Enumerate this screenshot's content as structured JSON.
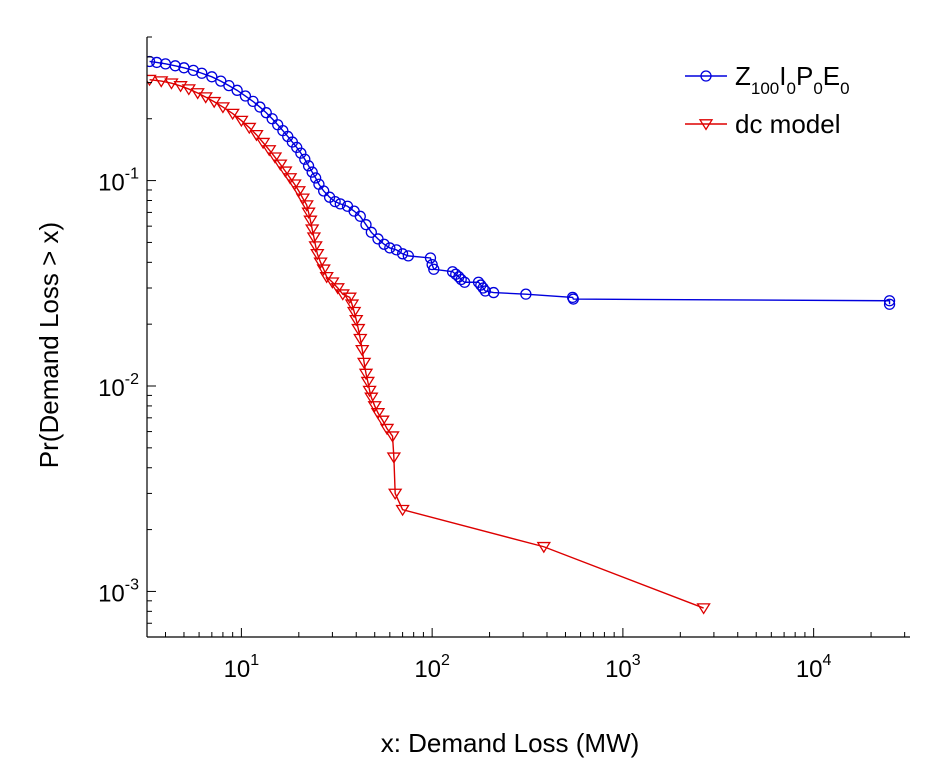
{
  "chart_data": {
    "type": "line",
    "title": "",
    "xlabel": "x: Demand Loss (MW)",
    "ylabel": "Pr(Demand Loss > x)",
    "x_scale": "log",
    "y_scale": "log",
    "xlim": [
      3.2,
      32000
    ],
    "ylim": [
      0.0006,
      0.5
    ],
    "grid": false,
    "legend_position": "top-right",
    "x_ticks": [
      {
        "value": 10,
        "base": "10",
        "exp": "1"
      },
      {
        "value": 100,
        "base": "10",
        "exp": "2"
      },
      {
        "value": 1000,
        "base": "10",
        "exp": "3"
      },
      {
        "value": 10000,
        "base": "10",
        "exp": "4"
      }
    ],
    "y_ticks": [
      {
        "value": 0.1,
        "base": "10",
        "exp": "-1"
      },
      {
        "value": 0.01,
        "base": "10",
        "exp": "-2"
      },
      {
        "value": 0.001,
        "base": "10",
        "exp": "-3"
      }
    ],
    "series": [
      {
        "name": "Z100I0P0E0",
        "legend_parts": [
          {
            "t": "Z",
            "sub": false
          },
          {
            "t": "100",
            "sub": true
          },
          {
            "t": "I",
            "sub": false
          },
          {
            "t": "0",
            "sub": true
          },
          {
            "t": "P",
            "sub": false
          },
          {
            "t": "0",
            "sub": true
          },
          {
            "t": "E",
            "sub": false
          },
          {
            "t": "0",
            "sub": true
          }
        ],
        "color": "#0000dd",
        "marker": "circle",
        "points": [
          [
            3.3,
            0.38
          ],
          [
            3.6,
            0.376
          ],
          [
            4.0,
            0.37
          ],
          [
            4.5,
            0.362
          ],
          [
            5.0,
            0.354
          ],
          [
            5.6,
            0.344
          ],
          [
            6.2,
            0.333
          ],
          [
            7.0,
            0.32
          ],
          [
            7.8,
            0.305
          ],
          [
            8.6,
            0.29
          ],
          [
            9.5,
            0.275
          ],
          [
            10.5,
            0.258
          ],
          [
            11.5,
            0.243
          ],
          [
            12.5,
            0.228
          ],
          [
            13.5,
            0.214
          ],
          [
            14.5,
            0.2
          ],
          [
            15.5,
            0.187
          ],
          [
            16.5,
            0.175
          ],
          [
            17.5,
            0.164
          ],
          [
            18.5,
            0.154
          ],
          [
            19.5,
            0.145
          ],
          [
            20.5,
            0.136
          ],
          [
            21.5,
            0.127
          ],
          [
            22.5,
            0.118
          ],
          [
            23.5,
            0.11
          ],
          [
            24.5,
            0.103
          ],
          [
            25.5,
            0.096
          ],
          [
            27.0,
            0.089
          ],
          [
            29.0,
            0.083
          ],
          [
            31.0,
            0.079
          ],
          [
            33.0,
            0.077
          ],
          [
            36.0,
            0.075
          ],
          [
            39.0,
            0.071
          ],
          [
            42.0,
            0.067
          ],
          [
            45.0,
            0.061
          ],
          [
            48.0,
            0.056
          ],
          [
            52.0,
            0.052
          ],
          [
            56.0,
            0.049
          ],
          [
            60.0,
            0.047
          ],
          [
            65.0,
            0.046
          ],
          [
            70.0,
            0.044
          ],
          [
            75.0,
            0.043
          ],
          [
            98.0,
            0.042
          ],
          [
            100.0,
            0.039
          ],
          [
            102.0,
            0.037
          ],
          [
            128.0,
            0.036
          ],
          [
            133.0,
            0.035
          ],
          [
            138.0,
            0.034
          ],
          [
            142.0,
            0.033
          ],
          [
            148.0,
            0.032
          ],
          [
            175.0,
            0.032
          ],
          [
            180.0,
            0.031
          ],
          [
            185.0,
            0.03
          ],
          [
            190.0,
            0.029
          ],
          [
            210.0,
            0.0285
          ],
          [
            310.0,
            0.028
          ],
          [
            545.0,
            0.027
          ],
          [
            550.0,
            0.0265
          ],
          [
            25000.0,
            0.026
          ],
          [
            25000.0,
            0.025
          ]
        ]
      },
      {
        "name": "dc model",
        "legend_parts": [
          {
            "t": "dc model",
            "sub": false
          }
        ],
        "color": "#dd0000",
        "marker": "triangle-down",
        "points": [
          [
            3.3,
            0.31
          ],
          [
            3.8,
            0.305
          ],
          [
            4.3,
            0.298
          ],
          [
            4.8,
            0.289
          ],
          [
            5.3,
            0.279
          ],
          [
            5.9,
            0.267
          ],
          [
            6.5,
            0.255
          ],
          [
            7.2,
            0.242
          ],
          [
            8.0,
            0.228
          ],
          [
            9.0,
            0.212
          ],
          [
            10.0,
            0.196
          ],
          [
            11.0,
            0.181
          ],
          [
            12.0,
            0.167
          ],
          [
            13.0,
            0.153
          ],
          [
            14.0,
            0.141
          ],
          [
            15.0,
            0.13
          ],
          [
            16.0,
            0.12
          ],
          [
            17.0,
            0.111
          ],
          [
            18.0,
            0.103
          ],
          [
            19.0,
            0.096
          ],
          [
            20.0,
            0.089
          ],
          [
            21.0,
            0.082
          ],
          [
            22.0,
            0.076
          ],
          [
            22.5,
            0.07
          ],
          [
            23.0,
            0.064
          ],
          [
            23.5,
            0.058
          ],
          [
            24.0,
            0.053
          ],
          [
            24.5,
            0.048
          ],
          [
            25.0,
            0.044
          ],
          [
            26.0,
            0.04
          ],
          [
            27.0,
            0.037
          ],
          [
            28.0,
            0.034
          ],
          [
            30.0,
            0.032
          ],
          [
            32.0,
            0.03
          ],
          [
            34.0,
            0.028
          ],
          [
            37.0,
            0.027
          ],
          [
            38.0,
            0.025
          ],
          [
            39.0,
            0.023
          ],
          [
            40.0,
            0.021
          ],
          [
            41.0,
            0.019
          ],
          [
            42.0,
            0.017
          ],
          [
            43.0,
            0.015
          ],
          [
            44.0,
            0.013
          ],
          [
            45.0,
            0.0115
          ],
          [
            46.0,
            0.0105
          ],
          [
            47.0,
            0.0095
          ],
          [
            48.0,
            0.0088
          ],
          [
            50.0,
            0.008
          ],
          [
            52.0,
            0.0074
          ],
          [
            55.0,
            0.0068
          ],
          [
            58.0,
            0.0062
          ],
          [
            62.0,
            0.0057
          ],
          [
            63.0,
            0.0045
          ],
          [
            64.0,
            0.003
          ],
          [
            70.0,
            0.0025
          ],
          [
            385.0,
            0.00165
          ],
          [
            2650.0,
            0.00083
          ]
        ]
      }
    ]
  }
}
